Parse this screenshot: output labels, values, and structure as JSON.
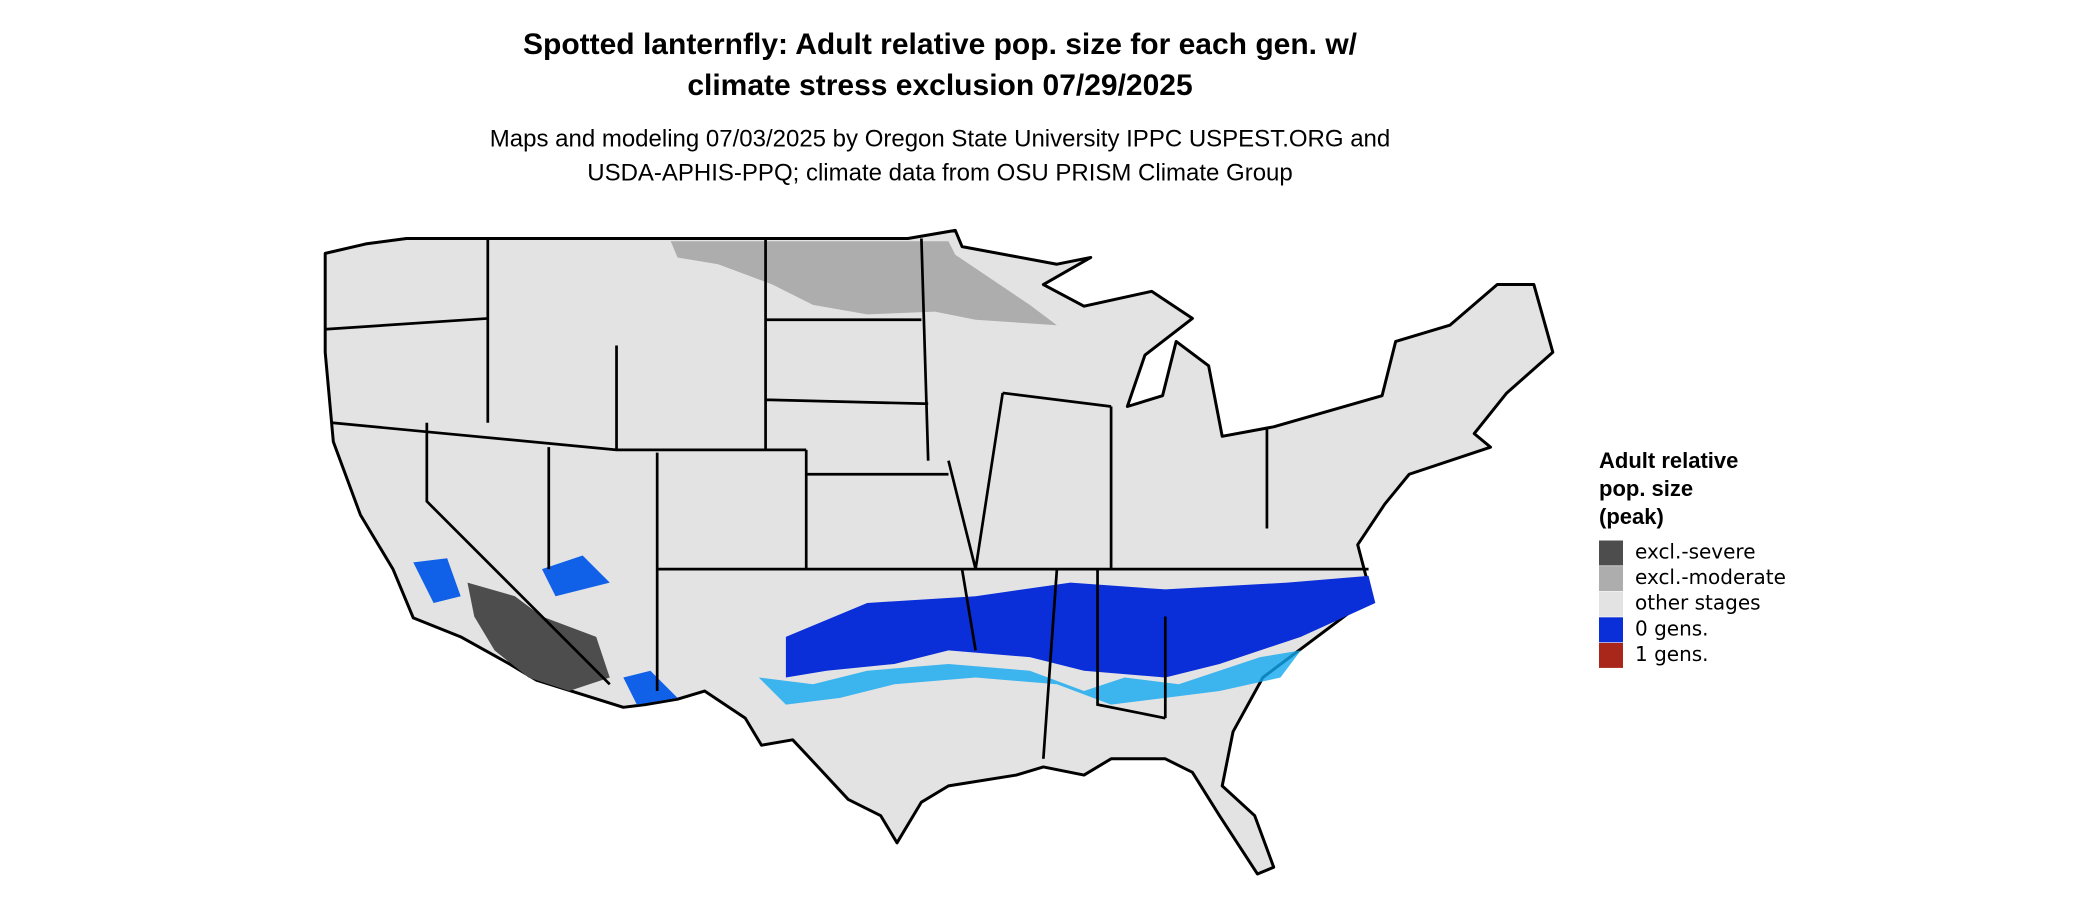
{
  "header": {
    "title": [
      "Spotted lanternfly: Adult relative pop. size for each gen. w/",
      "climate stress exclusion 07/29/2025"
    ],
    "subtitle": [
      "Maps and modeling 07/03/2025 by Oregon State University IPPC USPEST.ORG and",
      "USDA-APHIS-PPQ; climate data from OSU PRISM Climate Group"
    ]
  },
  "legend": {
    "title": [
      "Adult relative",
      "pop. size",
      "(peak)"
    ],
    "items": [
      {
        "label": "excl.-severe",
        "color": "#4d4d4d"
      },
      {
        "label": "excl.-moderate",
        "color": "#adadad"
      },
      {
        "label": "other stages",
        "color": "#e3e3e3"
      },
      {
        "label": "0 gens.",
        "color": "#0a2ed8"
      },
      {
        "label": "1 gens.",
        "color": "#a8261a"
      }
    ]
  }
}
